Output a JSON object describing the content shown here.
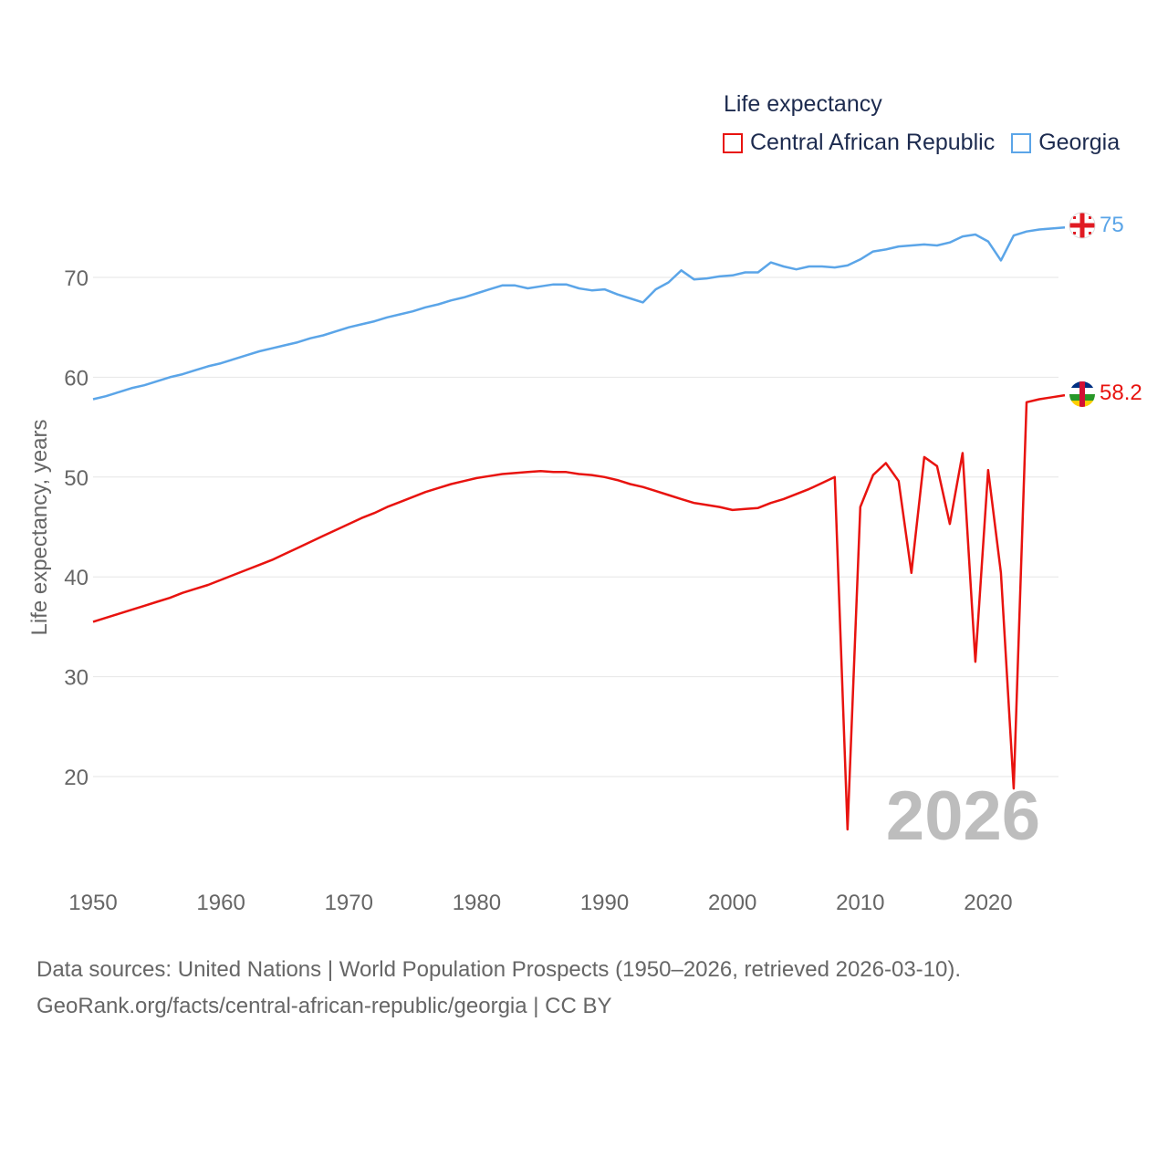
{
  "chart_data": {
    "type": "line",
    "title": "Life expectancy",
    "ylabel": "Life expectancy, years",
    "xlabel": "",
    "xlim": [
      1950,
      2026
    ],
    "ylim": [
      10,
      75
    ],
    "y_ticks": [
      20,
      30,
      40,
      50,
      60,
      70
    ],
    "x_ticks": [
      1950,
      1960,
      1970,
      1980,
      1990,
      2000,
      2010,
      2020
    ],
    "grid": true,
    "legend_position": "top-right",
    "current_year": "2026",
    "x": [
      1950,
      1951,
      1952,
      1953,
      1954,
      1955,
      1956,
      1957,
      1958,
      1959,
      1960,
      1961,
      1962,
      1963,
      1964,
      1965,
      1966,
      1967,
      1968,
      1969,
      1970,
      1971,
      1972,
      1973,
      1974,
      1975,
      1976,
      1977,
      1978,
      1979,
      1980,
      1981,
      1982,
      1983,
      1984,
      1985,
      1986,
      1987,
      1988,
      1989,
      1990,
      1991,
      1992,
      1993,
      1994,
      1995,
      1996,
      1997,
      1998,
      1999,
      2000,
      2001,
      2002,
      2003,
      2004,
      2005,
      2006,
      2007,
      2008,
      2009,
      2010,
      2011,
      2012,
      2013,
      2014,
      2015,
      2016,
      2017,
      2018,
      2019,
      2020,
      2021,
      2022,
      2023,
      2024,
      2025,
      2026
    ],
    "series": [
      {
        "name": "Central African Republic",
        "color": "#e8130f",
        "end_label": "58.2",
        "flag": "central-african-republic-flag",
        "values": [
          35.5,
          35.9,
          36.3,
          36.7,
          37.1,
          37.5,
          37.9,
          38.4,
          38.8,
          39.2,
          39.7,
          40.2,
          40.7,
          41.2,
          41.7,
          42.3,
          42.9,
          43.5,
          44.1,
          44.7,
          45.3,
          45.9,
          46.4,
          47.0,
          47.5,
          48.0,
          48.5,
          48.9,
          49.3,
          49.6,
          49.9,
          50.1,
          50.3,
          50.4,
          50.5,
          50.6,
          50.5,
          50.5,
          50.3,
          50.2,
          50.0,
          49.7,
          49.3,
          49.0,
          48.6,
          48.2,
          47.8,
          47.4,
          47.2,
          47.0,
          46.7,
          46.8,
          46.9,
          47.4,
          47.8,
          48.3,
          48.8,
          49.4,
          50.0,
          14.7,
          47.0,
          50.2,
          51.4,
          49.6,
          40.4,
          52.0,
          51.1,
          45.3,
          52.4,
          31.5,
          50.7,
          40.4,
          18.8,
          57.5,
          57.8,
          58.0,
          58.2
        ]
      },
      {
        "name": "Georgia",
        "color": "#5ba5e8",
        "end_label": "75",
        "flag": "georgia-flag",
        "values": [
          57.8,
          58.1,
          58.5,
          58.9,
          59.2,
          59.6,
          60.0,
          60.3,
          60.7,
          61.1,
          61.4,
          61.8,
          62.2,
          62.6,
          62.9,
          63.2,
          63.5,
          63.9,
          64.2,
          64.6,
          65.0,
          65.3,
          65.6,
          66.0,
          66.3,
          66.6,
          67.0,
          67.3,
          67.7,
          68.0,
          68.4,
          68.8,
          69.2,
          69.2,
          68.9,
          69.1,
          69.3,
          69.3,
          68.9,
          68.7,
          68.8,
          68.3,
          67.9,
          67.5,
          68.8,
          69.5,
          70.7,
          69.8,
          69.9,
          70.1,
          70.2,
          70.5,
          70.5,
          71.5,
          71.1,
          70.8,
          71.1,
          71.1,
          71.0,
          71.2,
          71.8,
          72.6,
          72.8,
          73.1,
          73.2,
          73.3,
          73.2,
          73.5,
          74.1,
          74.3,
          73.6,
          71.7,
          74.2,
          74.6,
          74.8,
          74.9,
          75.0
        ]
      }
    ]
  },
  "source": {
    "line1": "Data sources: United Nations | World Population Prospects (1950–2026, retrieved 2026-03-10).",
    "line2": "GeoRank.org/facts/central-african-republic/georgia | CC BY"
  }
}
